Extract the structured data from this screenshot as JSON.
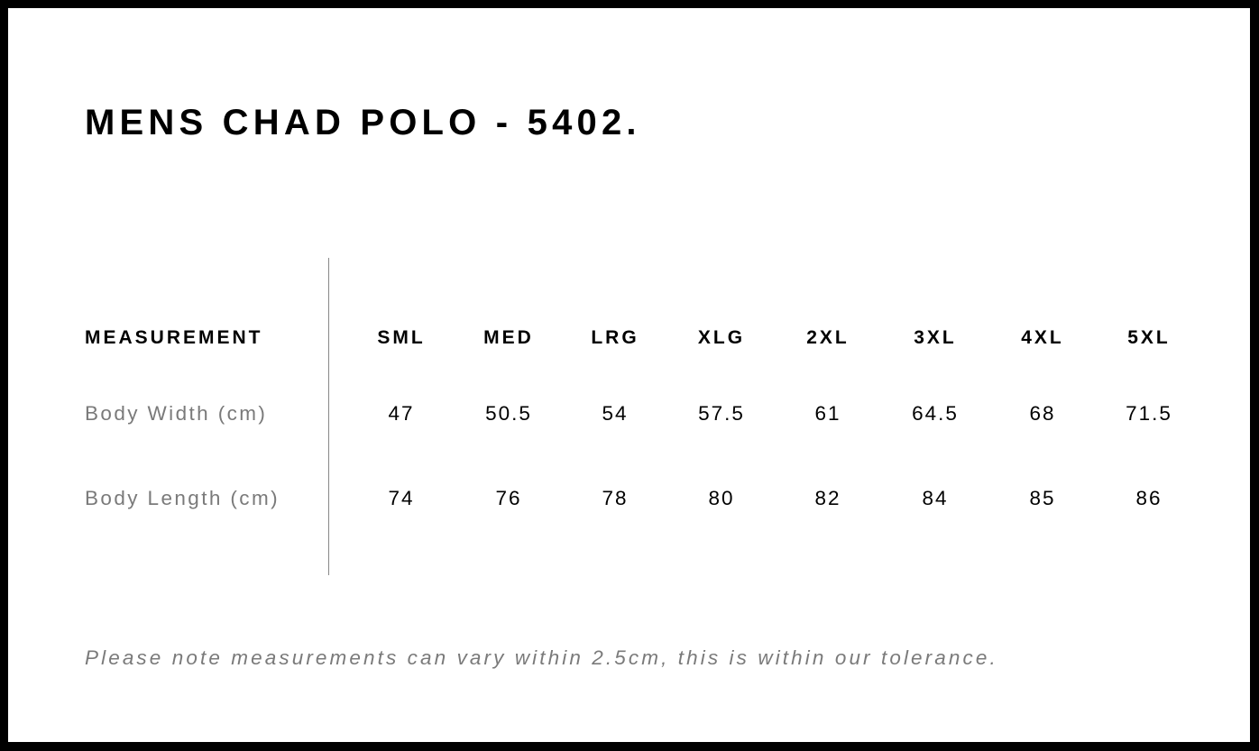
{
  "title": "MENS CHAD POLO - 5402.",
  "table": {
    "header_label": "MEASUREMENT",
    "sizes": [
      "SML",
      "MED",
      "LRG",
      "XLG",
      "2XL",
      "3XL",
      "4XL",
      "5XL"
    ],
    "rows": [
      {
        "label": "Body Width (cm)",
        "values": [
          "47",
          "50.5",
          "54",
          "57.5",
          "61",
          "64.5",
          "68",
          "71.5"
        ]
      },
      {
        "label": "Body Length (cm)",
        "values": [
          "74",
          "76",
          "78",
          "80",
          "82",
          "84",
          "85",
          "86"
        ]
      }
    ]
  },
  "note": "Please note measurements can vary within 2.5cm, this is within our tolerance.",
  "colors": {
    "frame": "#000000",
    "label_gray": "#7a7a7a",
    "divider": "#888888"
  }
}
